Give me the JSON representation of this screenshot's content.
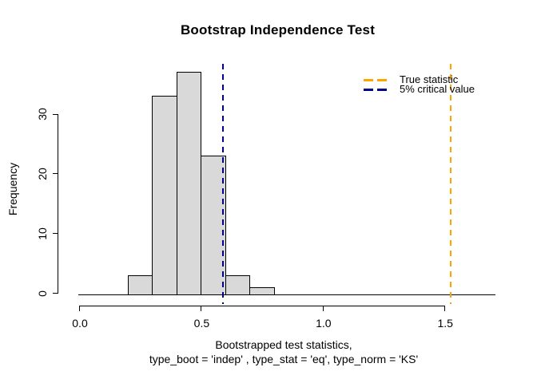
{
  "chart_data": {
    "type": "bar",
    "subtype": "histogram",
    "title": "Bootstrap Independence Test",
    "ylabel": "Frequency",
    "xlabel_line1": "Bootstrapped test statistics,",
    "xlabel_line2": "type_boot = 'indep' , type_stat = 'eq', type_norm = 'KS'",
    "bins": {
      "breaks": [
        0.2,
        0.3,
        0.4,
        0.5,
        0.6,
        0.7,
        0.8
      ],
      "frequencies": [
        3,
        33,
        37,
        23,
        3,
        1
      ]
    },
    "x_ticks": [
      0.0,
      0.5,
      1.0,
      1.5
    ],
    "x_tick_labels": [
      "0.0",
      "0.5",
      "1.0",
      "1.5"
    ],
    "y_ticks": [
      0,
      10,
      20,
      30
    ],
    "y_tick_labels": [
      "0",
      "10",
      "20",
      "30"
    ],
    "xlim": [
      0.0,
      1.71
    ],
    "ylim": [
      0,
      38
    ],
    "bar_fill_color": "#d9d9d9",
    "bar_border_color": "#000000",
    "axis_color": "#000000",
    "vlines": [
      {
        "name": "true-statistic",
        "value": 1.525,
        "color": "#ffa500",
        "style": "dashed"
      },
      {
        "name": "critical-value",
        "value": 0.59,
        "color": "#00008b",
        "style": "dashed"
      }
    ],
    "legend": {
      "position": "topright",
      "border": "none",
      "items": [
        {
          "label": "True statistic",
          "color": "#ffa500",
          "line_style": "dashed"
        },
        {
          "label": "5% critical value",
          "color": "#00008b",
          "line_style": "dashed"
        }
      ]
    },
    "grid": false
  }
}
